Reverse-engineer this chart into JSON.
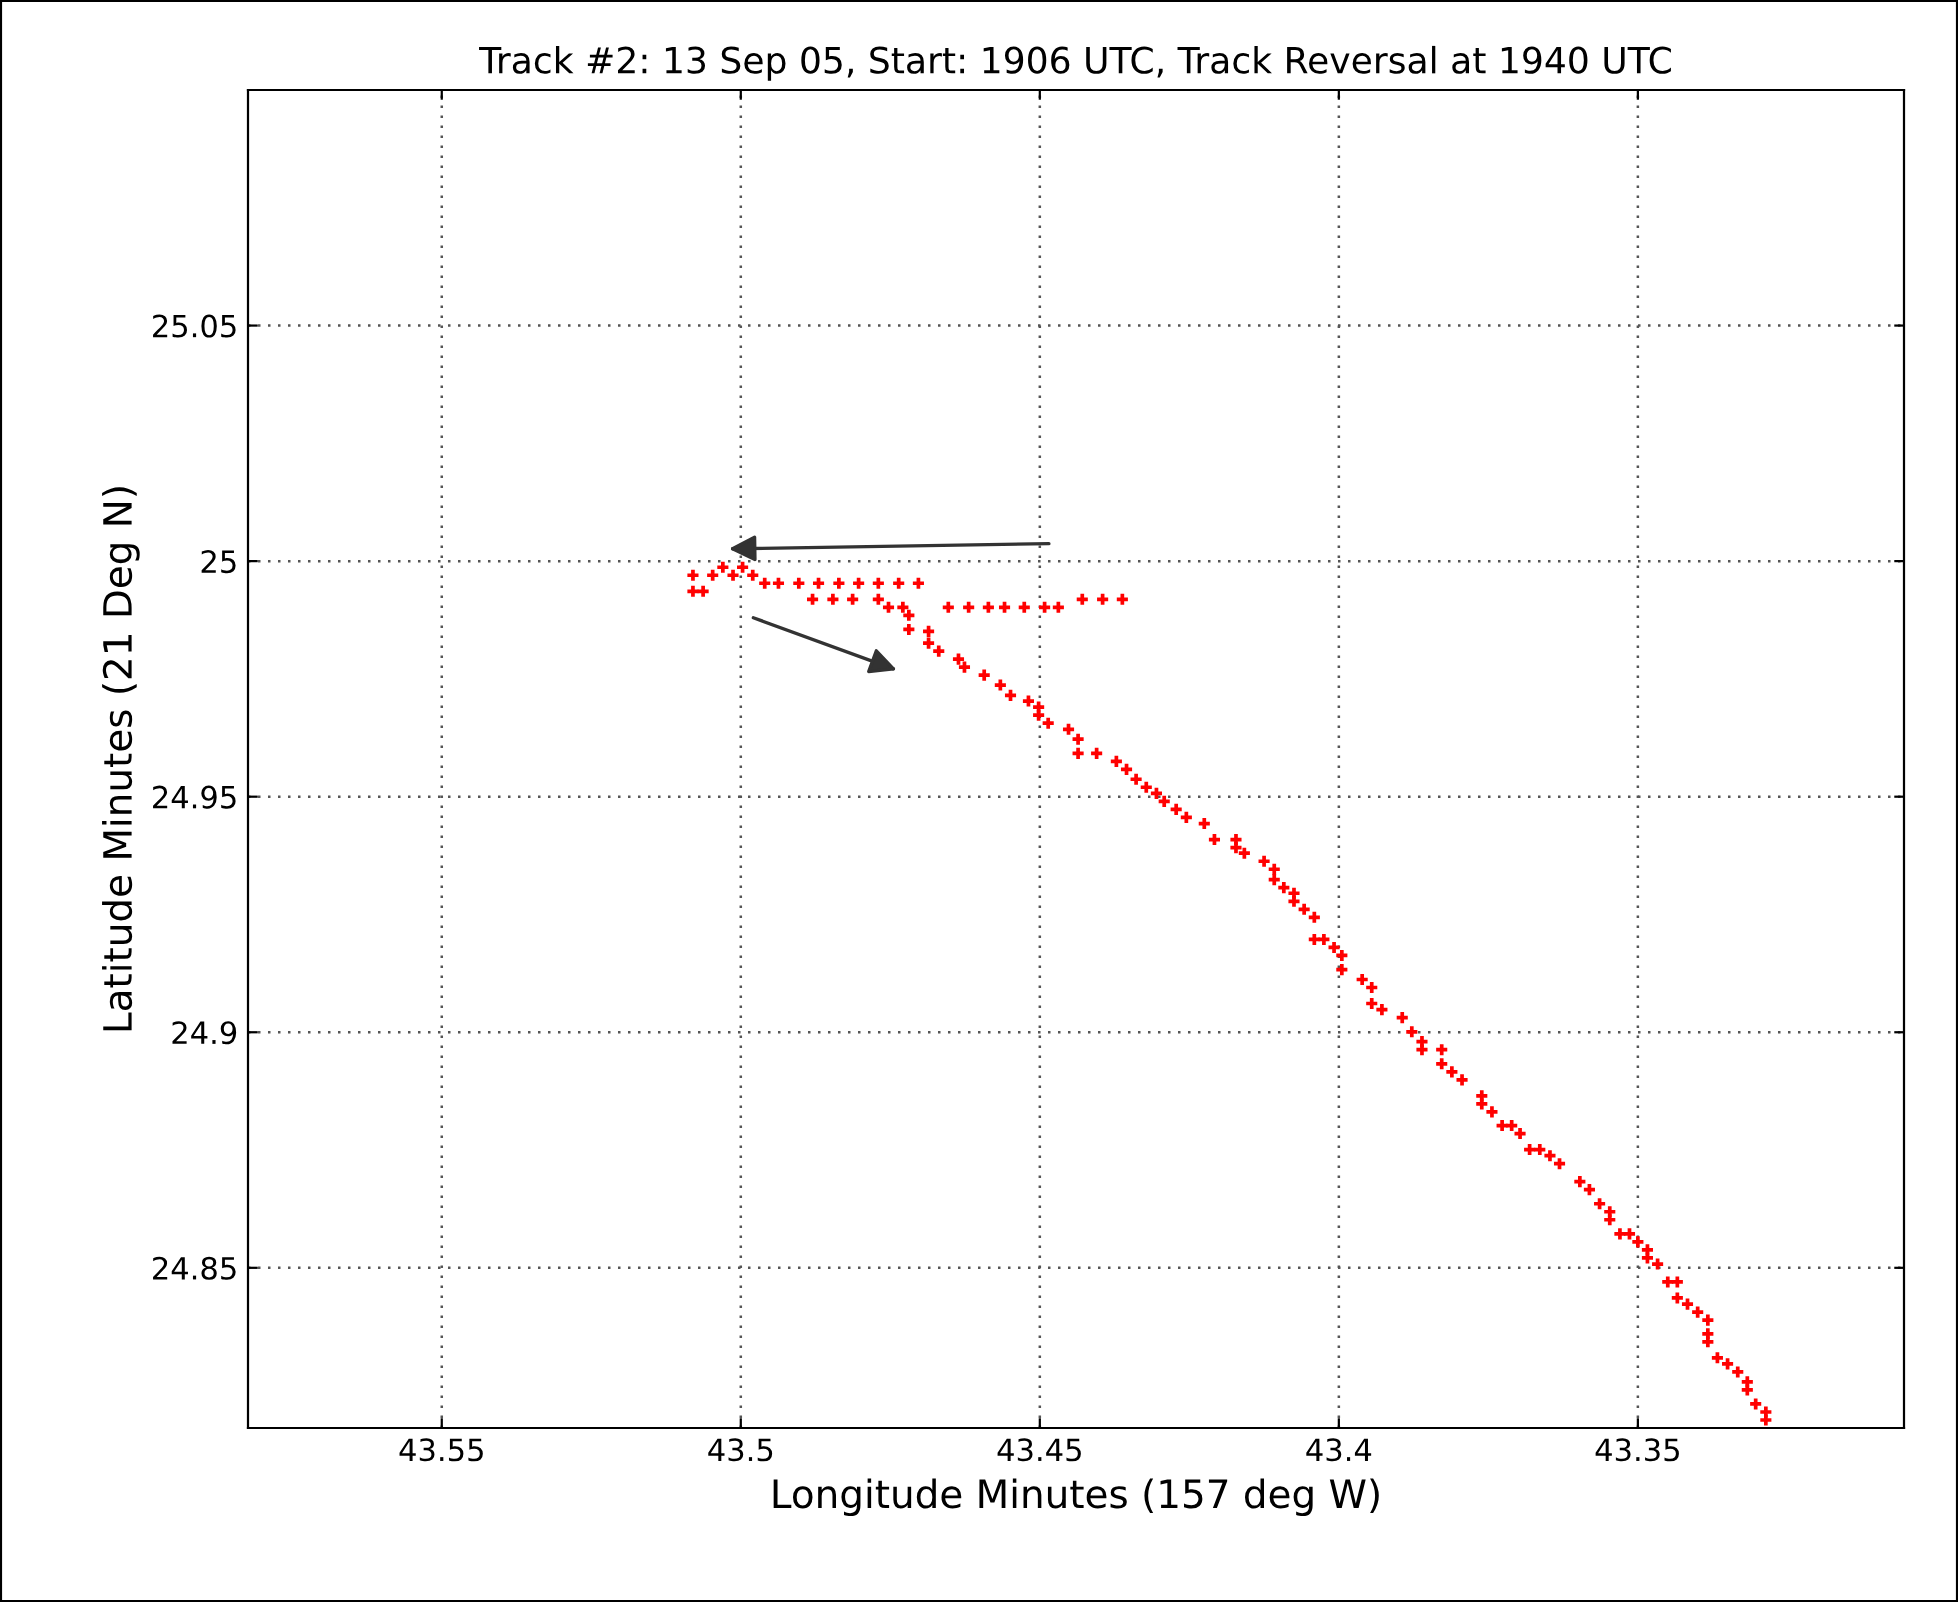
{
  "chart_data": {
    "type": "scatter",
    "title": "Track #2: 13 Sep 05, Start: 1906 UTC, Track Reversal at 1940 UTC",
    "xlabel": "Longitude Minutes (157 deg W)",
    "ylabel": "Latitude Minutes (21 Deg N)",
    "xlim": [
      43.5824,
      43.3055
    ],
    "ylim": [
      24.816,
      25.1
    ],
    "xticks": [
      43.55,
      43.5,
      43.45,
      43.4,
      43.35
    ],
    "yticks": [
      24.85,
      24.9,
      24.95,
      25,
      25.05
    ],
    "grid": true,
    "marker": "cross",
    "series": [
      {
        "color": "#ff0000",
        "x": [
          43.4362,
          43.4395,
          43.4429,
          43.4469,
          43.4492,
          43.4526,
          43.4559,
          43.4586,
          43.4619,
          43.4653,
          43.4703,
          43.4736,
          43.477,
          43.4803,
          43.4836,
          43.487,
          43.4903,
          43.4937,
          43.496,
          43.498,
          43.5013,
          43.5047,
          43.508,
          43.503,
          43.4997,
          43.508,
          43.5063,
          43.488,
          43.4846,
          43.4813,
          43.477,
          43.4753,
          43.4729,
          43.4719,
          43.4719,
          43.4686,
          43.4686,
          43.4669,
          43.4636,
          43.4626,
          43.4593,
          43.4566,
          43.4549,
          43.4519,
          43.4502,
          43.4502,
          43.4486,
          43.4452,
          43.4436,
          43.4436,
          43.4405,
          43.4372,
          43.4355,
          43.4339,
          43.4322,
          43.4305,
          43.4292,
          43.4272,
          43.4255,
          43.4225,
          43.4208,
          43.4172,
          43.4172,
          43.4158,
          43.4125,
          43.4108,
          43.4108,
          43.4092,
          43.4075,
          43.4075,
          43.4058,
          43.4041,
          43.4041,
          43.4025,
          43.4008,
          43.3995,
          43.3995,
          43.3961,
          43.3945,
          43.3945,
          43.3928,
          43.3894,
          43.3878,
          43.3861,
          43.3861,
          43.3828,
          43.3828,
          43.3811,
          43.3794,
          43.3761,
          43.3761,
          43.3744,
          43.3727,
          43.3711,
          43.3697,
          43.3681,
          43.3664,
          43.3647,
          43.3631,
          43.3597,
          43.3581,
          43.3564,
          43.3547,
          43.3547,
          43.353,
          43.3514,
          43.35,
          43.3484,
          43.3484,
          43.3467,
          43.345,
          43.3434,
          43.3434,
          43.3417,
          43.34,
          43.3383,
          43.3383,
          43.3383,
          43.3367,
          43.335,
          43.3333,
          43.3317,
          43.3317,
          43.3303,
          43.3286,
          43.3286
        ],
        "values": [
          24.9919,
          24.9919,
          24.9919,
          24.9902,
          24.9902,
          24.9902,
          24.9902,
          24.9902,
          24.9902,
          24.9902,
          24.9953,
          24.9953,
          24.9953,
          24.9953,
          24.9953,
          24.9953,
          24.9953,
          24.9953,
          24.9953,
          24.997,
          24.997,
          24.997,
          24.997,
          24.9987,
          24.9987,
          24.9936,
          24.9936,
          24.9919,
          24.9919,
          24.9919,
          24.9919,
          24.9902,
          24.9902,
          24.9885,
          24.9855,
          24.9851,
          24.9826,
          24.9809,
          24.9792,
          24.9775,
          24.9758,
          24.9737,
          24.9715,
          24.9703,
          24.969,
          24.9673,
          24.9656,
          24.9643,
          24.9622,
          24.9592,
          24.9592,
          24.9575,
          24.9558,
          24.9537,
          24.952,
          24.9507,
          24.949,
          24.9473,
          24.9456,
          24.9443,
          24.9409,
          24.9409,
          24.9392,
          24.938,
          24.9363,
          24.9346,
          24.9324,
          24.9307,
          24.9295,
          24.9278,
          24.9261,
          24.9244,
          24.9197,
          24.9197,
          24.918,
          24.9163,
          24.9133,
          24.9112,
          24.9095,
          24.9061,
          24.9048,
          24.9031,
          24.9001,
          24.898,
          24.8963,
          24.8963,
          24.8933,
          24.8916,
          24.8899,
          24.8865,
          24.8848,
          24.8831,
          24.8802,
          24.8802,
          24.8785,
          24.8751,
          24.8751,
          24.8738,
          24.8721,
          24.8683,
          24.8666,
          24.8636,
          24.8619,
          24.8602,
          24.8572,
          24.8572,
          24.8555,
          24.8538,
          24.8521,
          24.8508,
          24.847,
          24.847,
          24.8436,
          24.8423,
          24.8406,
          24.8389,
          24.836,
          24.8343,
          24.8309,
          24.8296,
          24.8279,
          24.8258,
          24.8241,
          24.8211,
          24.8194,
          24.8177
        ]
      }
    ]
  }
}
